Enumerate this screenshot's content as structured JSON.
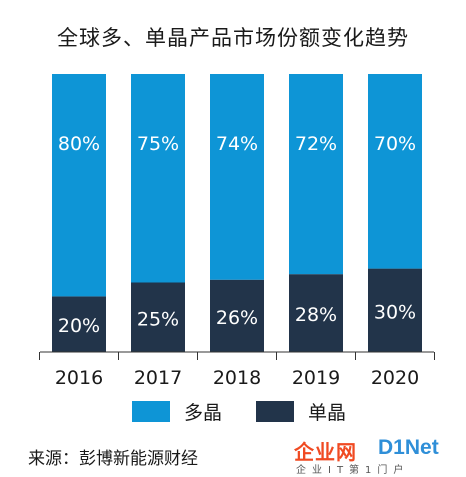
{
  "chart_data": {
    "type": "bar",
    "stacked": true,
    "title": "全球多、单晶产品市场份额变化趋势",
    "categories": [
      "2016",
      "2017",
      "2018",
      "2019",
      "2020"
    ],
    "series": [
      {
        "name": "单晶",
        "values": [
          20,
          25,
          26,
          28,
          30
        ],
        "labels": [
          "20%",
          "25%",
          "26%",
          "28%",
          "30%"
        ],
        "color": "#22344a"
      },
      {
        "name": "多晶",
        "values": [
          80,
          75,
          74,
          72,
          70
        ],
        "labels": [
          "80%",
          "75%",
          "74%",
          "72%",
          "70%"
        ],
        "color": "#0e95d6"
      }
    ],
    "ylim": [
      0,
      100
    ],
    "grid": false,
    "legend": "bottom"
  },
  "source": "来源：彭博新能源财经",
  "watermark": {
    "name": "企业网",
    "brand": "D1Net",
    "sub": "企业IT第1门户"
  }
}
